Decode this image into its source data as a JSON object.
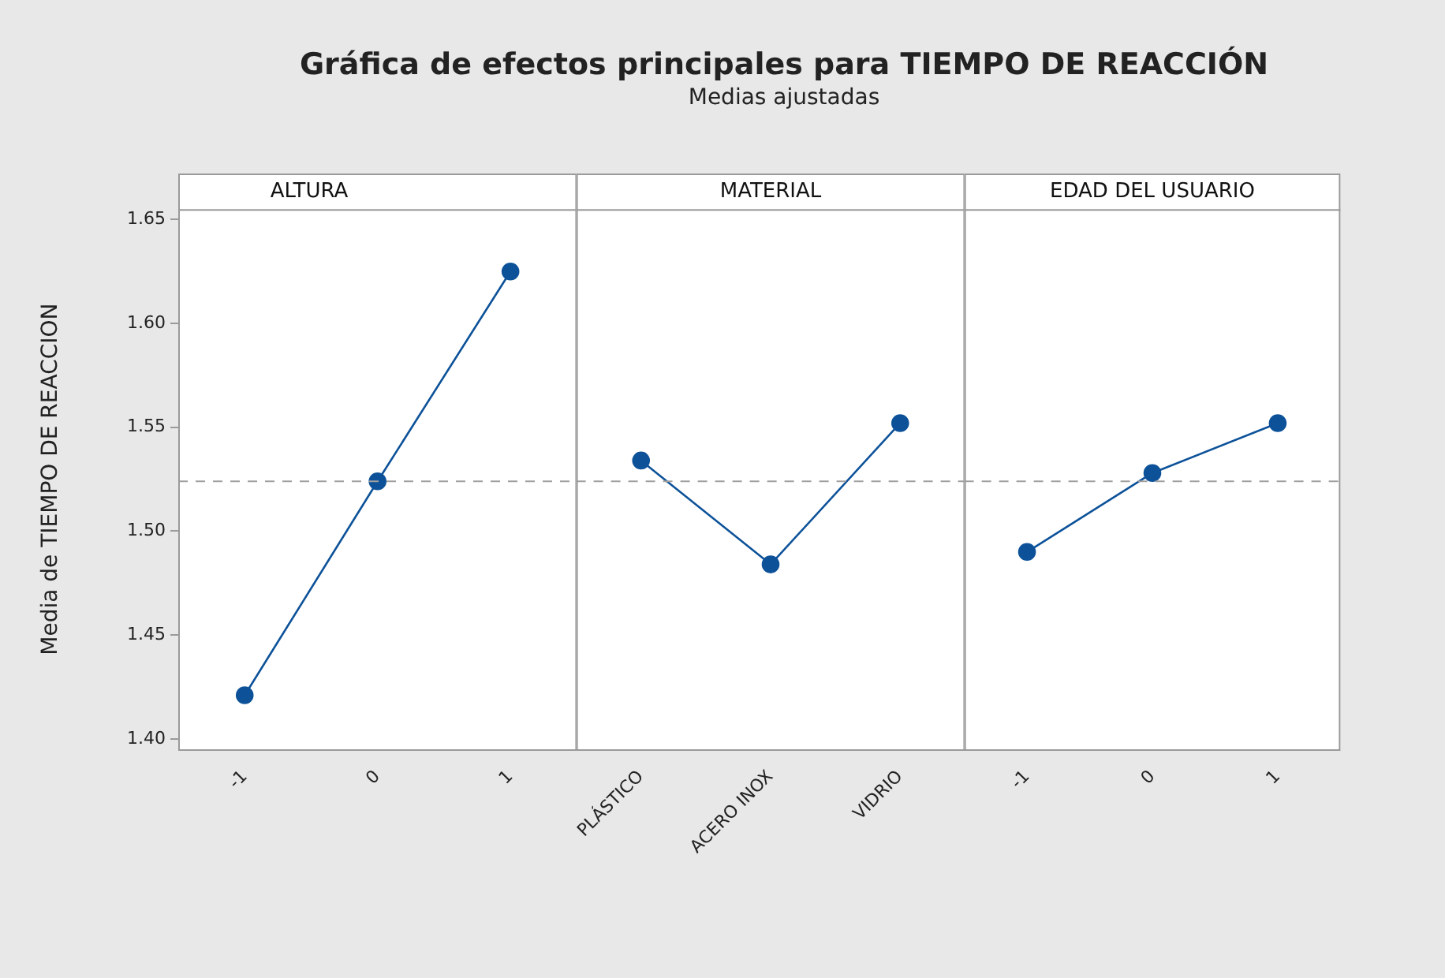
{
  "chart_data": [
    {
      "type": "line",
      "title": "ALTURA",
      "annotations": [
        "Gráfica de efectos principales para TIEMPO DE REACCIÓN",
        "Medias ajustadas"
      ],
      "ylabel": "Media de TIEMPO DE REACCION",
      "categories": [
        "-1",
        "0",
        "1"
      ],
      "values": [
        1.421,
        1.524,
        1.625
      ],
      "color": "#0d5299",
      "marker": "circle",
      "ylim": [
        1.395,
        1.655
      ],
      "yticks": [
        {
          "value": 1.4,
          "label": "1.40"
        },
        {
          "value": 1.45,
          "label": "1.45"
        },
        {
          "value": 1.5,
          "label": "1.50"
        },
        {
          "value": 1.55,
          "label": "1.55"
        },
        {
          "value": 1.6,
          "label": "1.60"
        },
        {
          "value": 1.65,
          "label": "1.65"
        }
      ],
      "ref_lines": [
        {
          "axis": "y",
          "value": 1.524,
          "color": "#a0a0a0",
          "line_style": "dashed"
        }
      ],
      "grid": false
    },
    {
      "type": "line",
      "title": "MATERIAL",
      "categories": [
        "PLÁSTICO",
        "ACERO INOX",
        "VIDRIO"
      ],
      "values": [
        1.534,
        1.484,
        1.552
      ],
      "color": "#0d5299",
      "marker": "circle",
      "ylim": [
        1.395,
        1.655
      ],
      "tick_labels": "x",
      "ref_lines": [
        {
          "axis": "y",
          "value": 1.524,
          "color": "#a0a0a0",
          "line_style": "dashed"
        }
      ],
      "grid": false
    },
    {
      "type": "line",
      "title": "EDAD DEL USUARIO",
      "categories": [
        "-1",
        "0",
        "1"
      ],
      "values": [
        1.49,
        1.528,
        1.552
      ],
      "color": "#0d5299",
      "marker": "circle",
      "ylim": [
        1.395,
        1.655
      ],
      "tick_labels": "x",
      "ref_lines": [
        {
          "axis": "y",
          "value": 1.524,
          "color": "#a0a0a0",
          "line_style": "dashed"
        }
      ],
      "grid": false
    }
  ]
}
